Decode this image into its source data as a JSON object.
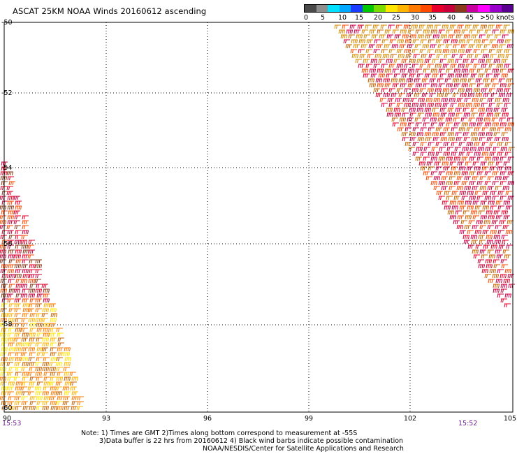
{
  "title": "ASCAT 25KM NOAA Winds 20160612 ascending",
  "scale": {
    "labels": [
      "0",
      "5",
      "10",
      "15",
      "20",
      "25",
      "30",
      "35",
      "40",
      "45",
      ">50 knots"
    ],
    "colors": [
      "#4a4a4a",
      "#8e8e8e",
      "#00e0ff",
      "#00a8ff",
      "#1a3cff",
      "#00c800",
      "#7cdc00",
      "#ffe600",
      "#ffb400",
      "#ff7a00",
      "#ff4a00",
      "#e8002a",
      "#c8003a",
      "#8a3a1a",
      "#c800a0",
      "#ff00ff",
      "#9a00cc",
      "#5a0090"
    ]
  },
  "axes": {
    "latitudes": [
      "-50",
      "-52",
      "-54",
      "-56",
      "-58",
      "-60"
    ],
    "longitudes": [
      "93",
      "96",
      "99",
      "102",
      "105"
    ],
    "left_corner_label": "90"
  },
  "times": {
    "left": "15:53",
    "right": "15:52"
  },
  "notes": [
    "Note: 1) Times are GMT 2)Times along bottom correspond to measurement at -55S",
    "3)Data buffer is 22 hrs from 20160612 4) Black wind barbs indicate possible contamination",
    "NOAA/NESDIS/Center for Satellite Applications and Research"
  ],
  "wind_colors": {
    "swath_right": [
      "#c8003a",
      "#e8002a",
      "#ff4a00",
      "#c86400",
      "#d4004a"
    ],
    "swath_left_upper": [
      "#c8003a",
      "#e8002a",
      "#8a3a1a",
      "#ff4a00"
    ],
    "swath_left_lower": [
      "#ffe600",
      "#ffb400",
      "#ff7a00",
      "#c86400"
    ]
  }
}
